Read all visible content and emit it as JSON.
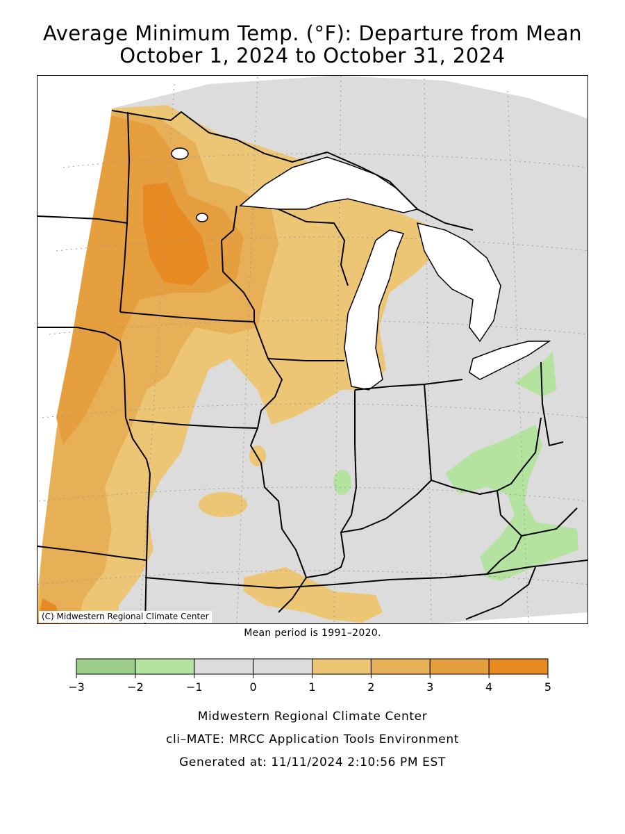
{
  "title_line1": "Average Minimum Temp. (°F): Departure from Mean",
  "title_line2": "October 1, 2024 to October 31, 2024",
  "copyright": "(C) Midwestern Regional Climate Center",
  "mean_period": "Mean period is 1991–2020.",
  "legend": {
    "bins": [
      {
        "from": -3,
        "to": -2,
        "color": "#9ccd8a"
      },
      {
        "from": -2,
        "to": -1,
        "color": "#b4e3a0"
      },
      {
        "from": -1,
        "to": 0,
        "color": "#dcdcdc"
      },
      {
        "from": 0,
        "to": 1,
        "color": "#dcdcdc"
      },
      {
        "from": 1,
        "to": 2,
        "color": "#ecc674"
      },
      {
        "from": 2,
        "to": 3,
        "color": "#e8b056"
      },
      {
        "from": 3,
        "to": 4,
        "color": "#e69f3e"
      },
      {
        "from": 4,
        "to": 5,
        "color": "#e88a22"
      }
    ],
    "tick_labels": [
      "−3",
      "−2",
      "−1",
      "0",
      "1",
      "2",
      "3",
      "4",
      "5"
    ]
  },
  "footer": {
    "line1": "Midwestern Regional Climate Center",
    "line2": "cli–MATE: MRCC Application Tools Environment",
    "line3": "Generated at: 11/11/2024 2:10:56 PM EST"
  }
}
